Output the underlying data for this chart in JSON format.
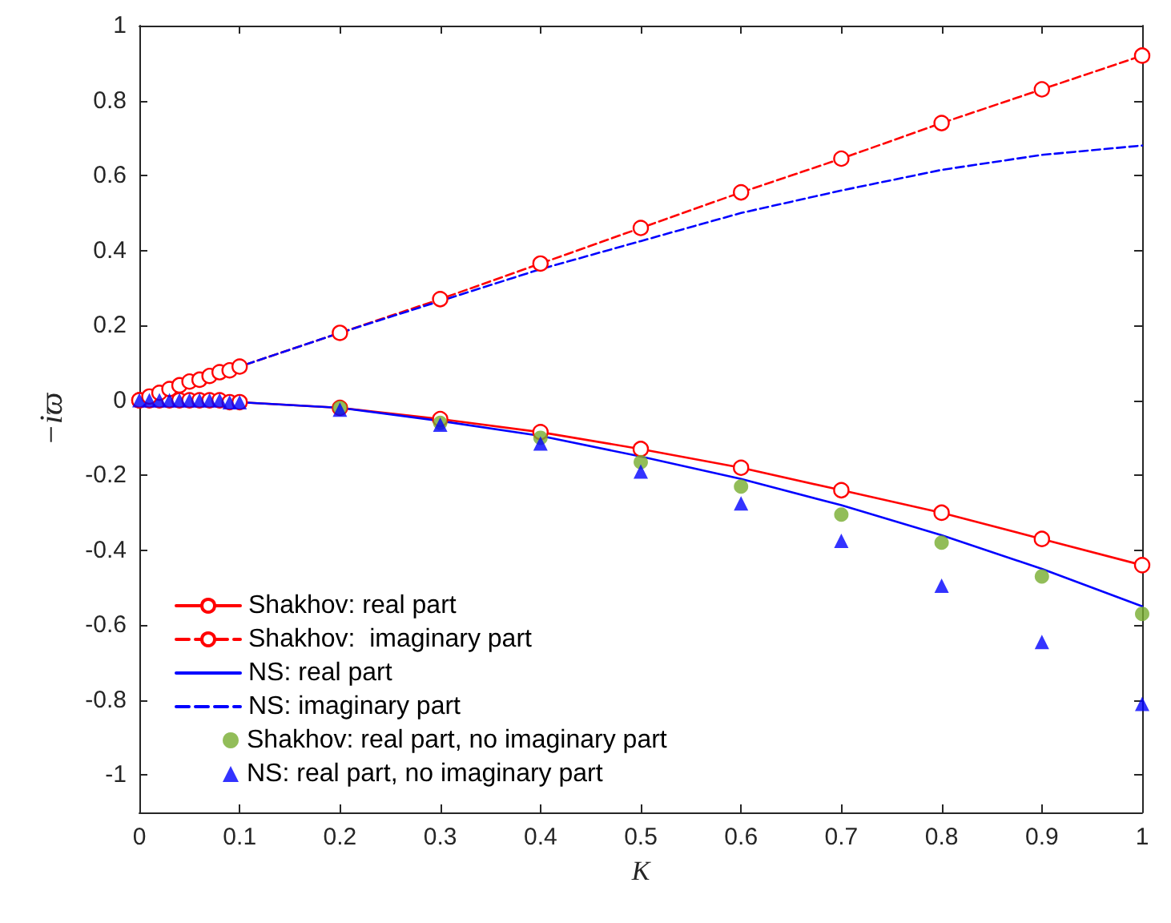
{
  "chart_data": {
    "type": "line",
    "xlabel": "K",
    "ylabel": "−iϖ",
    "xlim": [
      0,
      1
    ],
    "ylim": [
      -1.1,
      1
    ],
    "xticks": [
      0,
      0.1,
      0.2,
      0.3,
      0.4,
      0.5,
      0.6,
      0.7,
      0.8,
      0.9,
      1
    ],
    "yticks": [
      -1,
      -0.8,
      -0.6,
      -0.4,
      -0.2,
      0,
      0.2,
      0.4,
      0.6,
      0.8,
      1
    ],
    "grid": false,
    "legend": "bottom left",
    "series": [
      {
        "name": "Shakhov: real part",
        "marker": "circle",
        "line_style": "solid",
        "color": "#ff0000",
        "x": [
          0,
          0.01,
          0.02,
          0.03,
          0.04,
          0.05,
          0.06,
          0.07,
          0.08,
          0.09,
          0.1,
          0.2,
          0.3,
          0.4,
          0.5,
          0.6,
          0.7,
          0.8,
          0.9,
          1
        ],
        "values": [
          0,
          0,
          0,
          0,
          0,
          0,
          0,
          0,
          0,
          -0.005,
          -0.005,
          -0.02,
          -0.05,
          -0.085,
          -0.13,
          -0.18,
          -0.24,
          -0.3,
          -0.37,
          -0.44
        ]
      },
      {
        "name": "Shakhov:  imaginary part",
        "marker": "circle",
        "line_style": "dashed",
        "color": "#ff0000",
        "x": [
          0,
          0.01,
          0.02,
          0.03,
          0.04,
          0.05,
          0.06,
          0.07,
          0.08,
          0.09,
          0.1,
          0.2,
          0.3,
          0.4,
          0.5,
          0.6,
          0.7,
          0.8,
          0.9,
          1
        ],
        "values": [
          0,
          0.01,
          0.02,
          0.03,
          0.04,
          0.05,
          0.055,
          0.065,
          0.075,
          0.08,
          0.09,
          0.18,
          0.27,
          0.365,
          0.46,
          0.555,
          0.645,
          0.74,
          0.83,
          0.92
        ]
      },
      {
        "name": "NS: real part",
        "marker": "none",
        "line_style": "solid",
        "color": "#0000ff",
        "x": [
          0,
          0.1,
          0.2,
          0.3,
          0.4,
          0.5,
          0.6,
          0.7,
          0.8,
          0.9,
          1
        ],
        "values": [
          0,
          -0.005,
          -0.02,
          -0.055,
          -0.095,
          -0.15,
          -0.21,
          -0.28,
          -0.36,
          -0.45,
          -0.55
        ]
      },
      {
        "name": "NS: imaginary part",
        "marker": "none",
        "line_style": "dashed",
        "color": "#0000ff",
        "x": [
          0,
          0.1,
          0.2,
          0.3,
          0.4,
          0.5,
          0.6,
          0.7,
          0.8,
          0.9,
          1
        ],
        "values": [
          0,
          0.09,
          0.18,
          0.265,
          0.35,
          0.425,
          0.5,
          0.56,
          0.615,
          0.655,
          0.68
        ]
      },
      {
        "name": "Shakhov: real part, no imaginary part",
        "type": "scatter",
        "marker": "circle",
        "color": "#77ac30",
        "x": [
          0.2,
          0.3,
          0.4,
          0.5,
          0.6,
          0.7,
          0.8,
          0.9,
          1
        ],
        "values": [
          -0.02,
          -0.06,
          -0.1,
          -0.165,
          -0.23,
          -0.305,
          -0.38,
          -0.47,
          -0.57
        ]
      },
      {
        "name": "NS: real part, no imaginary part",
        "type": "scatter",
        "marker": "triangle",
        "color": "#0000ff",
        "x": [
          0,
          0.01,
          0.02,
          0.03,
          0.04,
          0.05,
          0.06,
          0.07,
          0.08,
          0.09,
          0.1,
          0.2,
          0.3,
          0.4,
          0.5,
          0.6,
          0.7,
          0.8,
          0.9,
          1
        ],
        "values": [
          0,
          0,
          0,
          0,
          0,
          0,
          0,
          0,
          0,
          -0.005,
          -0.005,
          -0.025,
          -0.065,
          -0.115,
          -0.19,
          -0.275,
          -0.375,
          -0.495,
          -0.645,
          -0.81
        ]
      }
    ]
  }
}
